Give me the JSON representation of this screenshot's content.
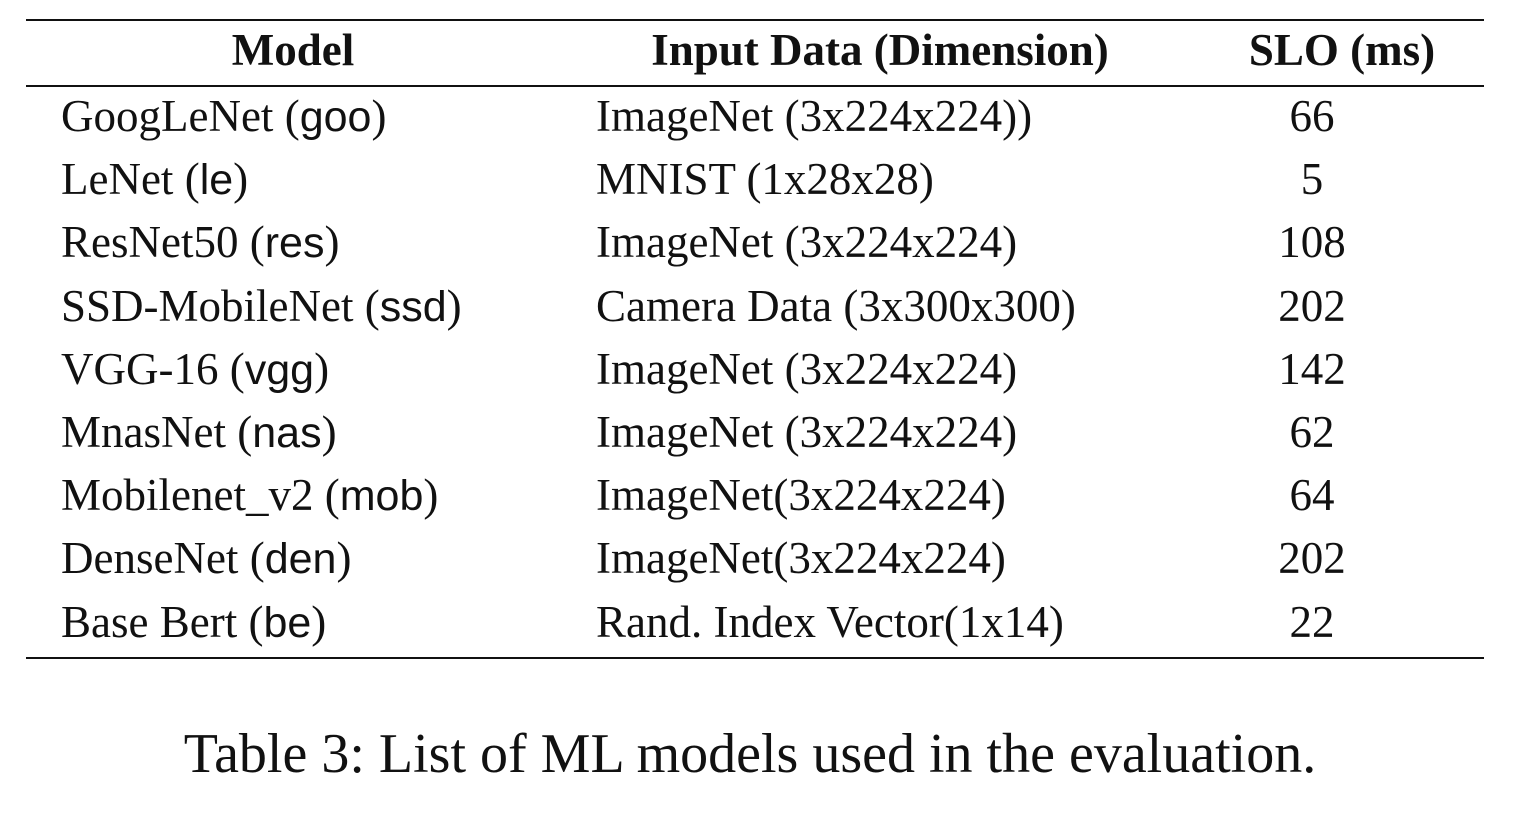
{
  "table": {
    "headers": {
      "model": "Model",
      "input": "Input Data (Dimension)",
      "slo": "SLO (ms)"
    },
    "rows": [
      {
        "name": "GoogLeNet",
        "abbr": "goo",
        "input": "ImageNet (3x224x224))",
        "slo": "66"
      },
      {
        "name": "LeNet",
        "abbr": "le",
        "input": "MNIST (1x28x28)",
        "slo": "5"
      },
      {
        "name": "ResNet50",
        "abbr": "res",
        "input": "ImageNet (3x224x224)",
        "slo": "108"
      },
      {
        "name": "SSD-MobileNet",
        "abbr": "ssd",
        "input": "Camera Data (3x300x300)",
        "slo": "202"
      },
      {
        "name": "VGG-16",
        "abbr": "vgg",
        "input": "ImageNet (3x224x224)",
        "slo": "142"
      },
      {
        "name": "MnasNet",
        "abbr": "nas",
        "input": "ImageNet (3x224x224)",
        "slo": "62"
      },
      {
        "name": "Mobilenet_v2",
        "abbr": "mob",
        "input": "ImageNet(3x224x224)",
        "slo": "64"
      },
      {
        "name": "DenseNet",
        "abbr": "den",
        "input": "ImageNet(3x224x224)",
        "slo": "202"
      },
      {
        "name": "Base Bert",
        "abbr": "be",
        "input": "Rand. Index Vector(1x14)",
        "slo": "22"
      }
    ]
  },
  "caption": "Table 3: List of ML models used in the evaluation."
}
